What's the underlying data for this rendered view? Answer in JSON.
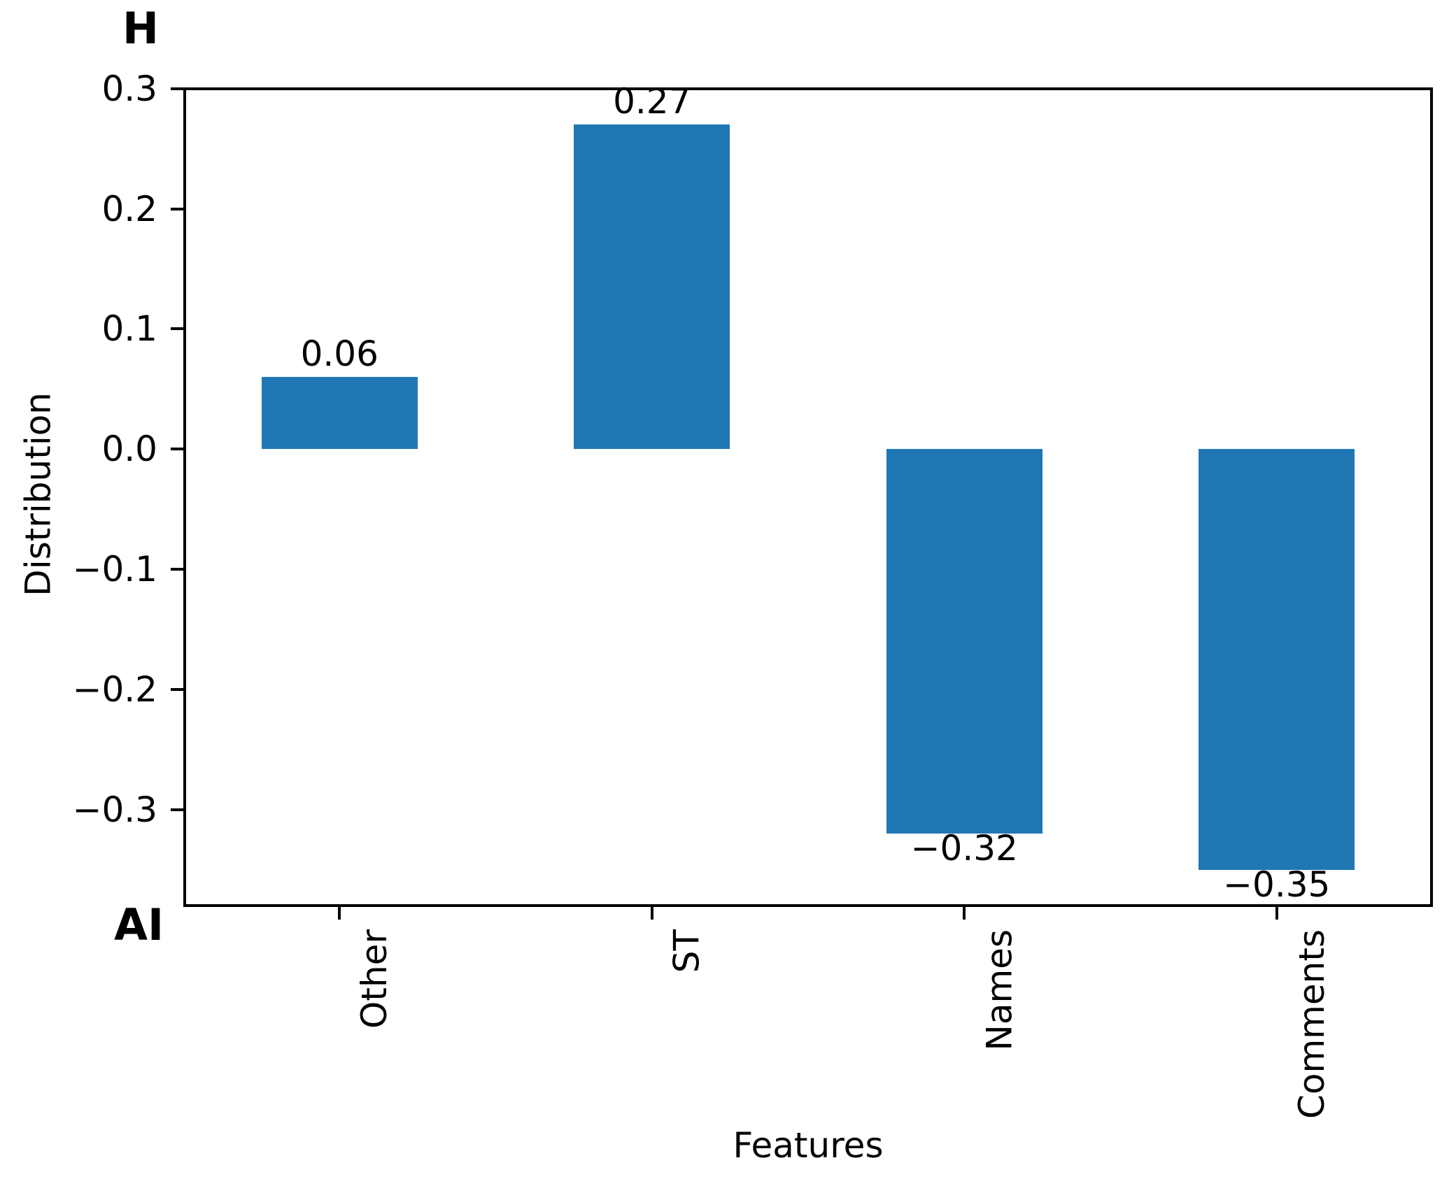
{
  "chart_data": {
    "type": "bar",
    "categories": [
      "Other",
      "ST",
      "Names",
      "Comments"
    ],
    "values": [
      0.06,
      0.27,
      -0.32,
      -0.35
    ],
    "bar_labels": [
      "0.06",
      "0.27",
      "−0.32",
      "−0.35"
    ],
    "xlabel": "Features",
    "ylabel": "Distribution",
    "yticks": [
      0.3,
      0.2,
      0.1,
      0.0,
      -0.1,
      -0.2,
      -0.3
    ],
    "ytick_labels": [
      "0.3",
      "0.2",
      "0.1",
      "0.0",
      "−0.1",
      "−0.2",
      "−0.3"
    ],
    "ylim": [
      -0.381,
      0.301
    ],
    "bar_color": "#1f77b4",
    "bar_relative_width": 0.5,
    "grid": false,
    "legend": false,
    "x_tick_rotation": 90,
    "annotations": {
      "top_left": "H",
      "bottom_left": "AI"
    }
  }
}
